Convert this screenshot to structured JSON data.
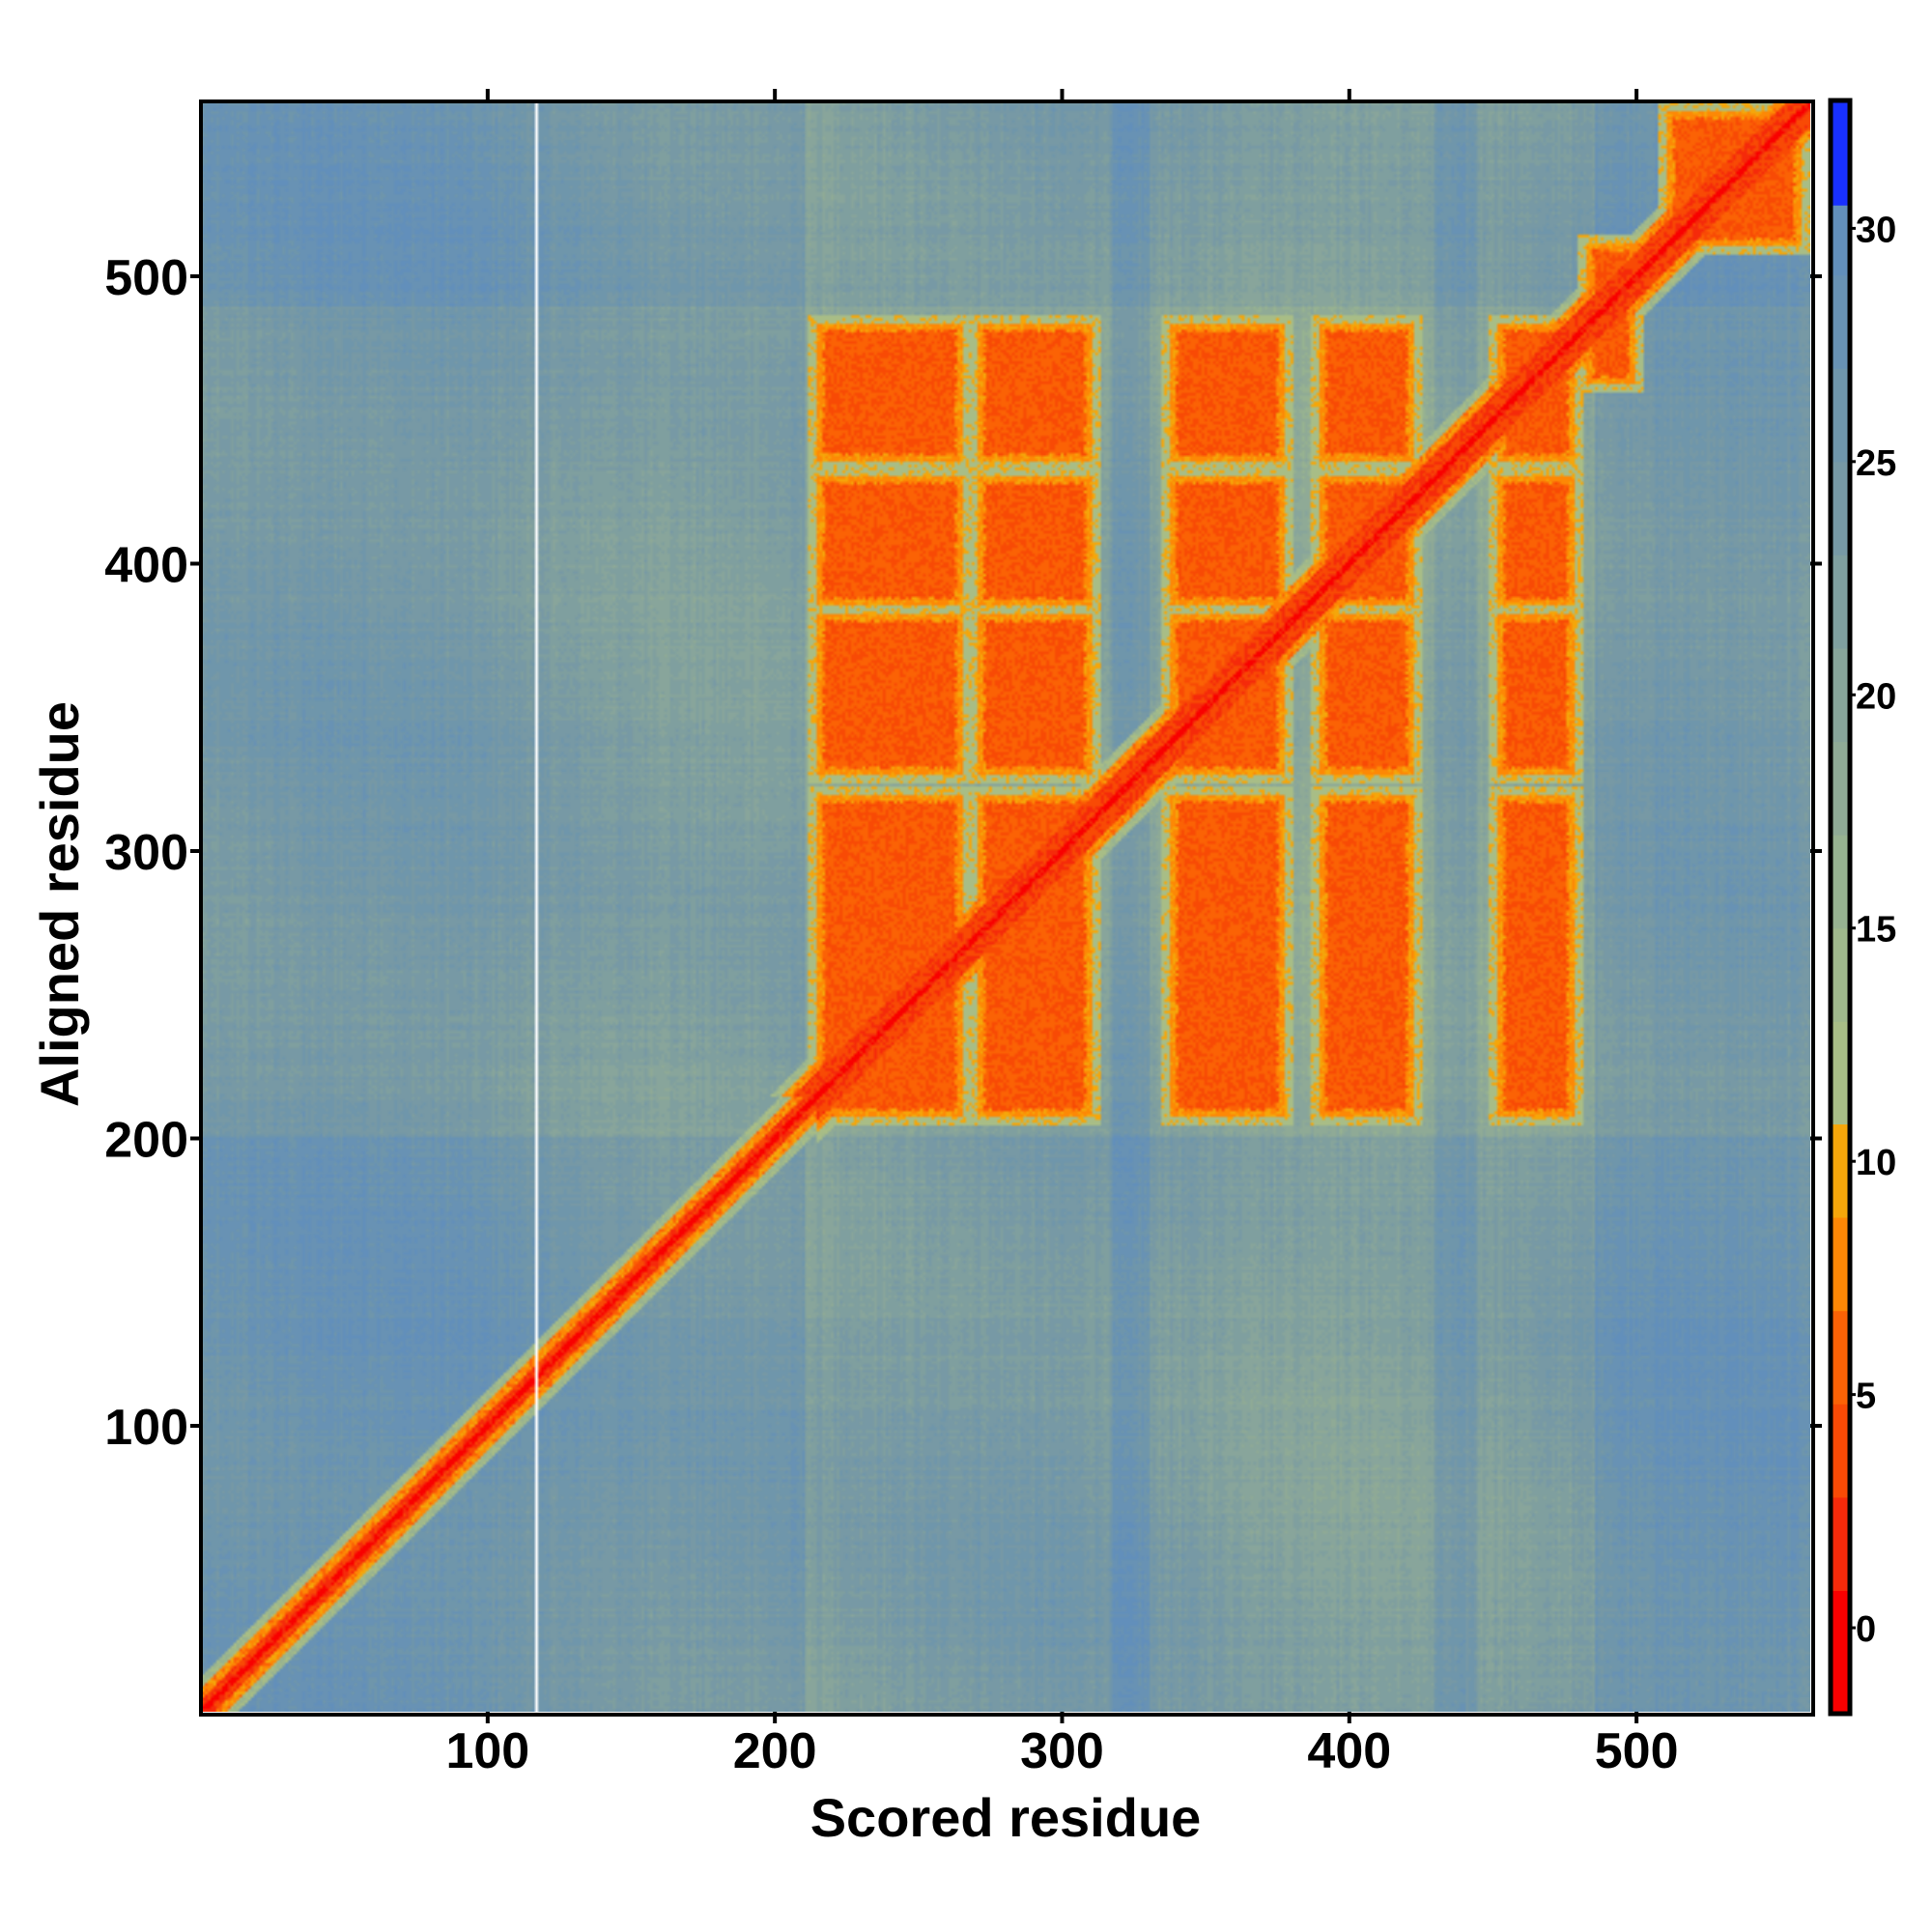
{
  "chart_data": {
    "type": "heatmap",
    "title": "",
    "xlabel": "Scored residue",
    "ylabel": "Aligned residue",
    "xlim": [
      0.5,
      560.5
    ],
    "ylim": [
      0.5,
      560.5
    ],
    "xticks": [
      100,
      200,
      300,
      400,
      500
    ],
    "yticks": [
      100,
      200,
      300,
      400,
      500
    ],
    "n_residues": 560,
    "missing_column_residue": 117,
    "background_value": 26,
    "diagonal_value": 0,
    "domain_block_value": 4.5,
    "block_columns": [
      [
        214,
        266
      ],
      [
        270,
        311
      ],
      [
        337,
        378
      ],
      [
        389,
        423
      ],
      [
        451,
        479
      ]
    ],
    "block_rows": [
      [
        207,
        320
      ],
      [
        326,
        383
      ],
      [
        385,
        431
      ],
      [
        435,
        484
      ]
    ],
    "cterm_blocks": [
      {
        "x": [
          482,
          500
        ],
        "y": [
          462,
          512
        ],
        "value": 5
      },
      {
        "x": [
          510,
          558
        ],
        "y": [
          510,
          558
        ],
        "value": 4
      }
    ],
    "colorbar": {
      "range": [
        -1.8,
        32.7
      ],
      "ticks": [
        0,
        5,
        10,
        15,
        20,
        25,
        30
      ],
      "bands": [
        {
          "from": -1.8,
          "to": 0.8,
          "color": "#f90000"
        },
        {
          "from": 0.8,
          "to": 2.8,
          "color": "#f52a0a"
        },
        {
          "from": 2.8,
          "to": 4.8,
          "color": "#f84a05"
        },
        {
          "from": 4.8,
          "to": 6.8,
          "color": "#fb6205"
        },
        {
          "from": 6.8,
          "to": 8.8,
          "color": "#fd8805"
        },
        {
          "from": 8.8,
          "to": 10.8,
          "color": "#f5a60a"
        },
        {
          "from": 10.8,
          "to": 13,
          "color": "#a8bd86"
        },
        {
          "from": 13,
          "to": 15,
          "color": "#9fb88c"
        },
        {
          "from": 15,
          "to": 17,
          "color": "#97b291"
        },
        {
          "from": 17,
          "to": 19,
          "color": "#8faa96"
        },
        {
          "from": 19,
          "to": 21,
          "color": "#88a59b"
        },
        {
          "from": 21,
          "to": 23,
          "color": "#7f9f9f"
        },
        {
          "from": 23,
          "to": 25,
          "color": "#7799a5"
        },
        {
          "from": 25,
          "to": 27,
          "color": "#6f96ab"
        },
        {
          "from": 27,
          "to": 29,
          "color": "#6892b4"
        },
        {
          "from": 29,
          "to": 30.5,
          "color": "#628fbb"
        },
        {
          "from": 30.5,
          "to": 32.7,
          "color": "#1830ff"
        }
      ]
    }
  }
}
